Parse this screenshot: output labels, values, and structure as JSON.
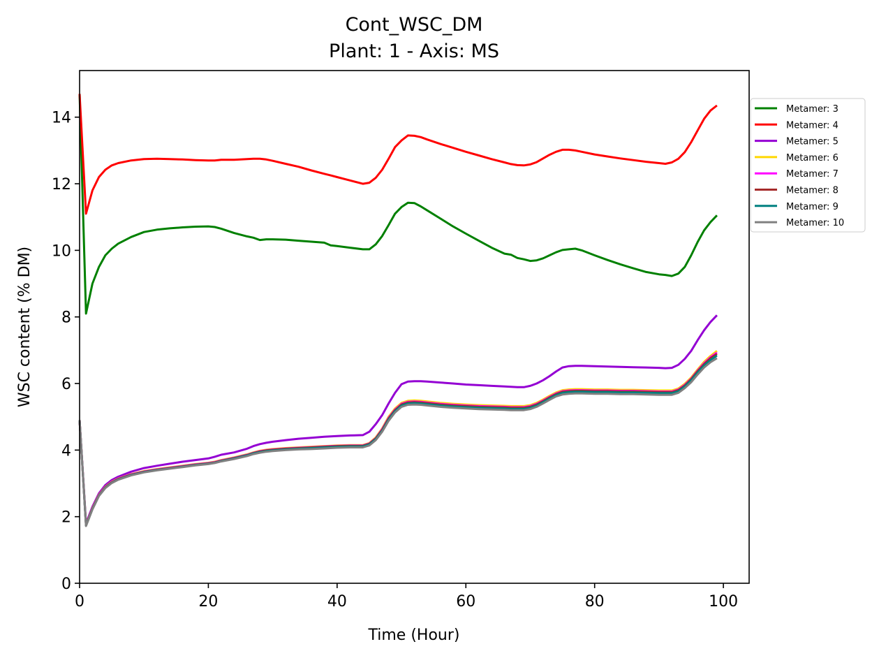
{
  "chart_data": {
    "type": "line",
    "title": "Cont_WSC_DM",
    "subtitle": "Plant: 1 - Axis: MS",
    "xlabel": "Time (Hour)",
    "ylabel": "WSC content (% DM)",
    "xlim": [
      0,
      104
    ],
    "ylim": [
      0,
      15.4
    ],
    "xticks": [
      0,
      20,
      40,
      60,
      80,
      100
    ],
    "yticks": [
      0,
      2,
      4,
      6,
      8,
      10,
      12,
      14
    ],
    "grid": false,
    "legend_position": "right, outside top",
    "x": [
      0,
      1,
      2,
      3,
      4,
      5,
      6,
      8,
      10,
      12,
      14,
      16,
      18,
      20,
      21,
      22,
      24,
      26,
      27,
      28,
      29,
      30,
      32,
      34,
      36,
      38,
      39,
      40,
      42,
      44,
      45,
      46,
      47,
      48,
      49,
      50,
      51,
      52,
      53,
      54,
      56,
      58,
      60,
      62,
      64,
      66,
      67,
      68,
      69,
      70,
      71,
      72,
      73,
      74,
      75,
      76,
      77,
      78,
      80,
      82,
      84,
      86,
      88,
      90,
      91,
      92,
      93,
      94,
      95,
      96,
      97,
      98,
      99
    ],
    "series": [
      {
        "name": "Metamer: 3",
        "color": "#008000",
        "values": [
          14.7,
          8.1,
          9.0,
          9.5,
          9.85,
          10.05,
          10.2,
          10.4,
          10.55,
          10.62,
          10.66,
          10.69,
          10.71,
          10.72,
          10.7,
          10.65,
          10.52,
          10.42,
          10.38,
          10.31,
          10.33,
          10.33,
          10.32,
          10.29,
          10.26,
          10.23,
          10.15,
          10.13,
          10.08,
          10.03,
          10.03,
          10.18,
          10.43,
          10.76,
          11.1,
          11.3,
          11.43,
          11.42,
          11.32,
          11.2,
          10.96,
          10.72,
          10.5,
          10.29,
          10.08,
          9.9,
          9.87,
          9.77,
          9.73,
          9.68,
          9.7,
          9.76,
          9.85,
          9.94,
          10.01,
          10.03,
          10.05,
          10.0,
          9.85,
          9.71,
          9.58,
          9.46,
          9.35,
          9.28,
          9.26,
          9.23,
          9.3,
          9.5,
          9.85,
          10.25,
          10.6,
          10.85,
          11.05
        ]
      },
      {
        "name": "Metamer: 4",
        "color": "#ff0000",
        "values": [
          14.7,
          11.1,
          11.8,
          12.2,
          12.42,
          12.55,
          12.62,
          12.7,
          12.74,
          12.75,
          12.74,
          12.73,
          12.71,
          12.7,
          12.7,
          12.72,
          12.72,
          12.74,
          12.75,
          12.75,
          12.73,
          12.69,
          12.6,
          12.51,
          12.4,
          12.3,
          12.25,
          12.2,
          12.1,
          12.0,
          12.03,
          12.18,
          12.42,
          12.75,
          13.1,
          13.3,
          13.45,
          13.44,
          13.4,
          13.33,
          13.2,
          13.08,
          12.96,
          12.85,
          12.74,
          12.64,
          12.59,
          12.56,
          12.55,
          12.58,
          12.65,
          12.76,
          12.87,
          12.96,
          13.02,
          13.02,
          13.0,
          12.96,
          12.88,
          12.82,
          12.76,
          12.71,
          12.66,
          12.62,
          12.6,
          12.64,
          12.75,
          12.95,
          13.25,
          13.6,
          13.95,
          14.2,
          14.35
        ]
      },
      {
        "name": "Metamer: 5",
        "color": "#9400d3",
        "values": [
          4.9,
          1.8,
          2.3,
          2.7,
          2.95,
          3.1,
          3.2,
          3.35,
          3.46,
          3.53,
          3.59,
          3.65,
          3.7,
          3.75,
          3.8,
          3.86,
          3.93,
          4.04,
          4.12,
          4.18,
          4.22,
          4.25,
          4.3,
          4.34,
          4.37,
          4.4,
          4.41,
          4.42,
          4.44,
          4.45,
          4.55,
          4.78,
          5.05,
          5.4,
          5.72,
          5.98,
          6.06,
          6.07,
          6.07,
          6.06,
          6.03,
          6.0,
          5.97,
          5.95,
          5.93,
          5.91,
          5.9,
          5.89,
          5.89,
          5.93,
          6.0,
          6.1,
          6.22,
          6.36,
          6.48,
          6.52,
          6.53,
          6.53,
          6.52,
          6.51,
          6.5,
          6.49,
          6.48,
          6.47,
          6.46,
          6.47,
          6.56,
          6.74,
          6.98,
          7.3,
          7.6,
          7.85,
          8.05
        ]
      },
      {
        "name": "Metamer: 6",
        "color": "#ffd700",
        "values": [
          4.9,
          1.76,
          2.26,
          2.66,
          2.9,
          3.05,
          3.15,
          3.28,
          3.37,
          3.43,
          3.48,
          3.53,
          3.58,
          3.62,
          3.65,
          3.7,
          3.78,
          3.87,
          3.93,
          3.98,
          4.01,
          4.03,
          4.06,
          4.08,
          4.1,
          4.12,
          4.13,
          4.14,
          4.15,
          4.15,
          4.21,
          4.38,
          4.65,
          5.0,
          5.25,
          5.42,
          5.48,
          5.49,
          5.48,
          5.46,
          5.42,
          5.39,
          5.37,
          5.35,
          5.34,
          5.33,
          5.32,
          5.32,
          5.32,
          5.35,
          5.42,
          5.52,
          5.63,
          5.73,
          5.8,
          5.82,
          5.83,
          5.83,
          5.82,
          5.82,
          5.81,
          5.81,
          5.8,
          5.79,
          5.79,
          5.79,
          5.85,
          5.99,
          6.18,
          6.42,
          6.65,
          6.83,
          6.98
        ]
      },
      {
        "name": "Metamer: 7",
        "color": "#ff00ff",
        "values": [
          4.9,
          1.75,
          2.25,
          2.65,
          2.89,
          3.04,
          3.14,
          3.27,
          3.36,
          3.42,
          3.47,
          3.52,
          3.57,
          3.61,
          3.64,
          3.69,
          3.77,
          3.86,
          3.92,
          3.97,
          4.0,
          4.02,
          4.05,
          4.07,
          4.09,
          4.11,
          4.12,
          4.13,
          4.14,
          4.14,
          4.2,
          4.36,
          4.63,
          4.97,
          5.22,
          5.39,
          5.45,
          5.46,
          5.45,
          5.43,
          5.39,
          5.36,
          5.34,
          5.32,
          5.31,
          5.3,
          5.29,
          5.29,
          5.29,
          5.32,
          5.39,
          5.49,
          5.6,
          5.7,
          5.77,
          5.79,
          5.8,
          5.8,
          5.79,
          5.79,
          5.78,
          5.78,
          5.77,
          5.76,
          5.76,
          5.76,
          5.82,
          5.96,
          6.15,
          6.39,
          6.61,
          6.79,
          6.93
        ]
      },
      {
        "name": "Metamer: 8",
        "color": "#a52a2a",
        "values": [
          4.9,
          1.74,
          2.24,
          2.64,
          2.88,
          3.03,
          3.13,
          3.26,
          3.35,
          3.41,
          3.46,
          3.51,
          3.56,
          3.6,
          3.63,
          3.68,
          3.76,
          3.85,
          3.91,
          3.96,
          3.99,
          4.01,
          4.04,
          4.06,
          4.08,
          4.1,
          4.11,
          4.12,
          4.13,
          4.13,
          4.19,
          4.35,
          4.61,
          4.95,
          5.2,
          5.37,
          5.43,
          5.44,
          5.43,
          5.41,
          5.37,
          5.34,
          5.32,
          5.3,
          5.29,
          5.28,
          5.27,
          5.27,
          5.27,
          5.3,
          5.37,
          5.47,
          5.58,
          5.68,
          5.75,
          5.77,
          5.78,
          5.78,
          5.77,
          5.77,
          5.76,
          5.76,
          5.75,
          5.74,
          5.74,
          5.74,
          5.8,
          5.94,
          6.13,
          6.37,
          6.58,
          6.76,
          6.89
        ]
      },
      {
        "name": "Metamer: 9",
        "color": "#008080",
        "values": [
          4.9,
          1.73,
          2.23,
          2.63,
          2.87,
          3.02,
          3.12,
          3.25,
          3.34,
          3.4,
          3.45,
          3.5,
          3.55,
          3.59,
          3.62,
          3.67,
          3.75,
          3.84,
          3.9,
          3.94,
          3.97,
          3.99,
          4.02,
          4.04,
          4.06,
          4.08,
          4.09,
          4.1,
          4.11,
          4.11,
          4.17,
          4.33,
          4.58,
          4.92,
          5.17,
          5.34,
          5.4,
          5.41,
          5.4,
          5.38,
          5.34,
          5.31,
          5.29,
          5.27,
          5.26,
          5.25,
          5.24,
          5.24,
          5.24,
          5.27,
          5.34,
          5.44,
          5.55,
          5.65,
          5.72,
          5.74,
          5.75,
          5.75,
          5.74,
          5.74,
          5.73,
          5.73,
          5.72,
          5.71,
          5.71,
          5.71,
          5.77,
          5.91,
          6.1,
          6.33,
          6.54,
          6.71,
          6.84
        ]
      },
      {
        "name": "Metamer: 10",
        "color": "#808080",
        "values": [
          4.9,
          1.72,
          2.22,
          2.62,
          2.86,
          3.01,
          3.11,
          3.24,
          3.33,
          3.39,
          3.44,
          3.49,
          3.54,
          3.58,
          3.61,
          3.66,
          3.73,
          3.82,
          3.88,
          3.92,
          3.95,
          3.97,
          4.0,
          4.02,
          4.03,
          4.05,
          4.06,
          4.07,
          4.08,
          4.08,
          4.14,
          4.3,
          4.55,
          4.88,
          5.13,
          5.3,
          5.36,
          5.37,
          5.36,
          5.34,
          5.3,
          5.27,
          5.25,
          5.23,
          5.22,
          5.21,
          5.2,
          5.2,
          5.2,
          5.23,
          5.3,
          5.4,
          5.51,
          5.61,
          5.67,
          5.69,
          5.7,
          5.7,
          5.69,
          5.69,
          5.68,
          5.68,
          5.67,
          5.66,
          5.66,
          5.66,
          5.72,
          5.86,
          6.04,
          6.27,
          6.48,
          6.64,
          6.76
        ]
      }
    ]
  }
}
